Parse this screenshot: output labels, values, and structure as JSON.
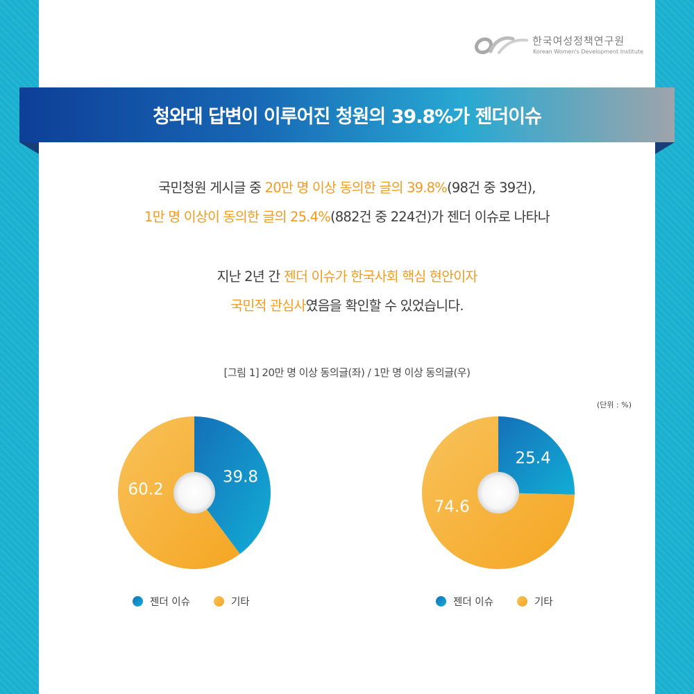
{
  "logo": {
    "korean": "한국여성정책연구원",
    "english": "Korean Women's Development Institute"
  },
  "title": "청와대 답변이 이루어진 청원의 39.8%가 젠더이슈",
  "paragraph1": {
    "line1": [
      {
        "text": "국민청원 게시글 중 ",
        "highlight": false
      },
      {
        "text": "20만 명 이상 동의한 글의 39.8%",
        "highlight": true
      },
      {
        "text": "(98건 중 39건),",
        "highlight": false
      }
    ],
    "line2": [
      {
        "text": "1만 명 이상이 동의한 글의 25.4%",
        "highlight": true
      },
      {
        "text": "(882건 중 224건)가 젠더 이슈로 나타나",
        "highlight": false
      }
    ]
  },
  "paragraph2": {
    "line1": [
      {
        "text": "지난 2년 간 ",
        "highlight": false
      },
      {
        "text": "젠더 이슈가 한국사회 핵심 현안이자",
        "highlight": true
      }
    ],
    "line2": [
      {
        "text": "국민적 관심사",
        "highlight": true
      },
      {
        "text": "였음을 확인할 수 있었습니다.",
        "highlight": false
      }
    ]
  },
  "figure_caption": "[그림 1] 20만 명 이상 동의글(좌) / 1만 명 이상 동의글(우)",
  "unit_label": "(단위 : %)",
  "colors": {
    "gender": "#1570b8",
    "gender_light": "#12aed6",
    "other": "#f5a623",
    "other_light": "#f8c25a",
    "highlight": "#f29b1d"
  },
  "chart_data": [
    {
      "type": "pie",
      "title": "20만 명 이상 동의글",
      "categories": [
        "젠더 이슈",
        "기타"
      ],
      "values": [
        39.8,
        60.2
      ],
      "labels": [
        "39.8",
        "60.2"
      ],
      "legend": [
        "젠더 이슈",
        "기타"
      ]
    },
    {
      "type": "pie",
      "title": "1만 명 이상 동의글",
      "categories": [
        "젠더 이슈",
        "기타"
      ],
      "values": [
        25.4,
        74.6
      ],
      "labels": [
        "25.4",
        "74.6"
      ],
      "legend": [
        "젠더 이슈",
        "기타"
      ]
    }
  ]
}
